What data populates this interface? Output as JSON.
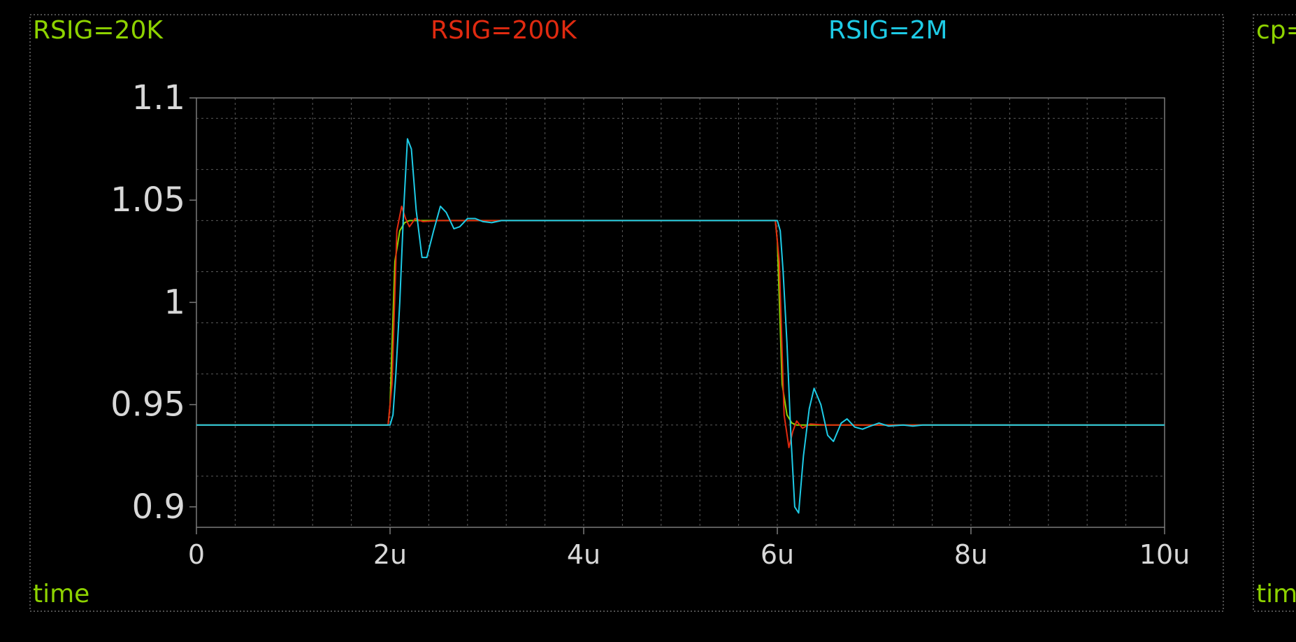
{
  "colors": {
    "background": "#000000",
    "frame": "#7a7a7a",
    "grid": "#5a5a5a",
    "tick_text": "#d8d8d8",
    "label_green": "#8ed300"
  },
  "panels": [
    {
      "xlabel": "time"
    },
    {
      "title_fragment": "cp=",
      "xlabel_fragment": "tim"
    }
  ],
  "chart_data": {
    "type": "line",
    "xlabel": "time",
    "xlim": [
      0,
      10
    ],
    "ylim": [
      0.89,
      1.1
    ],
    "x_ticks": [
      {
        "value": 0,
        "label": "0"
      },
      {
        "value": 2,
        "label": "2u"
      },
      {
        "value": 4,
        "label": "4u"
      },
      {
        "value": 6,
        "label": "6u"
      },
      {
        "value": 8,
        "label": "8u"
      },
      {
        "value": 10,
        "label": "10u"
      }
    ],
    "y_ticks": [
      {
        "value": 1.1,
        "label": "1.1"
      },
      {
        "value": 1.05,
        "label": "1.05"
      },
      {
        "value": 1.0,
        "label": "1"
      },
      {
        "value": 0.95,
        "label": "0.95"
      },
      {
        "value": 0.9,
        "label": "0.9"
      }
    ],
    "grid": true,
    "series": [
      {
        "name": "RSIG=20K",
        "color": "#8ed300",
        "x": [
          0,
          1.98,
          2.0,
          2.05,
          2.1,
          2.15,
          2.2,
          2.4,
          3.0,
          5.98,
          6.0,
          6.05,
          6.1,
          6.15,
          6.2,
          6.4,
          7.0,
          10.0
        ],
        "y": [
          0.94,
          0.94,
          0.95,
          1.02,
          1.035,
          1.039,
          1.04,
          1.04,
          1.04,
          1.04,
          1.03,
          0.96,
          0.945,
          0.941,
          0.94,
          0.94,
          0.94,
          0.94
        ]
      },
      {
        "name": "RSIG=200K",
        "color": "#e02a10",
        "x": [
          0,
          1.98,
          2.02,
          2.07,
          2.12,
          2.16,
          2.2,
          2.26,
          2.34,
          2.5,
          3.0,
          5.98,
          6.02,
          6.07,
          6.12,
          6.16,
          6.2,
          6.26,
          6.34,
          6.5,
          7.0,
          10.0
        ],
        "y": [
          0.94,
          0.94,
          0.96,
          1.035,
          1.047,
          1.041,
          1.037,
          1.041,
          1.0395,
          1.04,
          1.04,
          1.04,
          1.02,
          0.945,
          0.929,
          0.937,
          0.942,
          0.9385,
          0.9405,
          0.94,
          0.94,
          0.94
        ]
      },
      {
        "name": "RSIG=2M",
        "color": "#1ecbe6",
        "x": [
          0,
          2.0,
          2.03,
          2.06,
          2.1,
          2.14,
          2.18,
          2.22,
          2.27,
          2.33,
          2.38,
          2.45,
          2.52,
          2.58,
          2.66,
          2.72,
          2.8,
          2.88,
          2.96,
          3.05,
          3.15,
          3.3,
          3.5,
          3.6,
          4.0,
          6.0,
          6.03,
          6.06,
          6.1,
          6.14,
          6.18,
          6.22,
          6.27,
          6.33,
          6.38,
          6.45,
          6.52,
          6.58,
          6.66,
          6.72,
          6.8,
          6.88,
          6.96,
          7.05,
          7.15,
          7.3,
          7.4,
          7.5,
          10.0
        ],
        "y": [
          0.94,
          0.94,
          0.945,
          0.965,
          1.0,
          1.045,
          1.08,
          1.075,
          1.045,
          1.022,
          1.022,
          1.035,
          1.047,
          1.044,
          1.036,
          1.037,
          1.041,
          1.041,
          1.0395,
          1.039,
          1.04,
          1.04,
          1.04,
          1.04,
          1.04,
          1.04,
          1.035,
          1.015,
          0.98,
          0.935,
          0.9,
          0.897,
          0.925,
          0.948,
          0.958,
          0.95,
          0.935,
          0.932,
          0.941,
          0.943,
          0.939,
          0.938,
          0.9395,
          0.941,
          0.9395,
          0.94,
          0.9395,
          0.94,
          0.94
        ]
      }
    ]
  }
}
